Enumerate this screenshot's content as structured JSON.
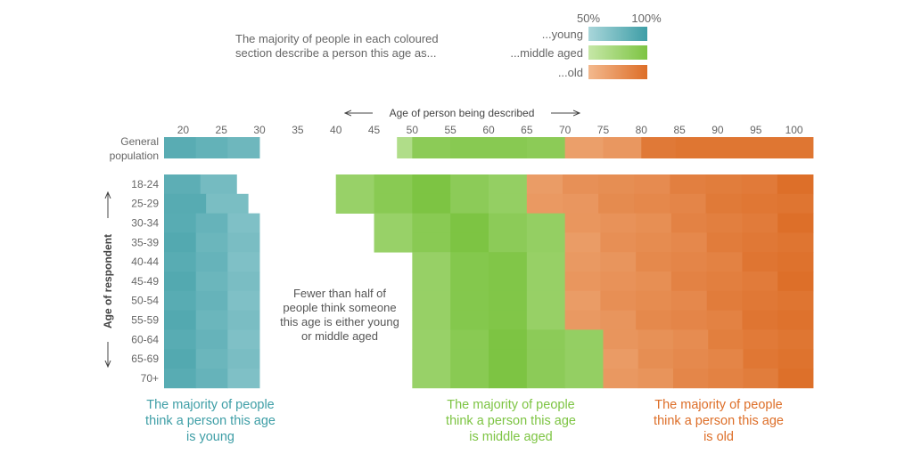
{
  "legend": {
    "title_line1": "The majority of people in each coloured",
    "title_line2": "section describe a person this age as...",
    "scale_low": "50%",
    "scale_high": "100%",
    "items": [
      {
        "key": "young",
        "label": "...young"
      },
      {
        "key": "middle",
        "label": "...middle aged"
      },
      {
        "key": "old",
        "label": "...old"
      }
    ]
  },
  "colors": {
    "young": [
      "#a9d6da",
      "#3e9ea6"
    ],
    "middle": [
      "#c6e7a7",
      "#7dc443"
    ],
    "old": [
      "#f3b98e",
      "#dd6e28"
    ]
  },
  "chart_data": {
    "type": "heatmap",
    "xlabel": "Age of person being described",
    "ylabel": "Age of respondent",
    "x_ticks": [
      20,
      25,
      30,
      35,
      40,
      45,
      50,
      55,
      60,
      65,
      70,
      75,
      80,
      85,
      90,
      95,
      100
    ],
    "xlim": [
      17.5,
      102.5
    ],
    "general_label_line1": "General",
    "general_label_line2": "population",
    "rows": [
      "18-24",
      "25-29",
      "30-34",
      "35-39",
      "40-44",
      "45-49",
      "50-54",
      "55-59",
      "60-64",
      "65-69",
      "70+"
    ],
    "general": [
      {
        "from": 17.5,
        "to": 30,
        "cat": "young",
        "shade": [
          0.75,
          0.65,
          0.55,
          0.45
        ]
      },
      {
        "from": 48,
        "to": 50,
        "cat": "middle",
        "shade": [
          0.3
        ]
      },
      {
        "from": 50,
        "to": 70,
        "cat": "middle",
        "shade": [
          0.8,
          0.85,
          0.85,
          0.8
        ]
      },
      {
        "from": 70,
        "to": 80,
        "cat": "old",
        "shade": [
          0.35,
          0.45
        ]
      },
      {
        "from": 80,
        "to": 102.5,
        "cat": "old",
        "shade": [
          0.85,
          0.9,
          0.9,
          0.9,
          0.9
        ]
      }
    ],
    "segments": [
      [
        {
          "from": 17.5,
          "to": 27,
          "cat": "young"
        },
        {
          "from": 40,
          "to": 65,
          "cat": "middle"
        },
        {
          "from": 65,
          "to": 102.5,
          "cat": "old"
        }
      ],
      [
        {
          "from": 17.5,
          "to": 28.5,
          "cat": "young"
        },
        {
          "from": 40,
          "to": 65,
          "cat": "middle"
        },
        {
          "from": 65,
          "to": 102.5,
          "cat": "old"
        }
      ],
      [
        {
          "from": 17.5,
          "to": 30,
          "cat": "young"
        },
        {
          "from": 45,
          "to": 70,
          "cat": "middle"
        },
        {
          "from": 70,
          "to": 102.5,
          "cat": "old"
        }
      ],
      [
        {
          "from": 17.5,
          "to": 30,
          "cat": "young"
        },
        {
          "from": 45,
          "to": 70,
          "cat": "middle"
        },
        {
          "from": 70,
          "to": 102.5,
          "cat": "old"
        }
      ],
      [
        {
          "from": 17.5,
          "to": 30,
          "cat": "young"
        },
        {
          "from": 50,
          "to": 70,
          "cat": "middle"
        },
        {
          "from": 70,
          "to": 102.5,
          "cat": "old"
        }
      ],
      [
        {
          "from": 17.5,
          "to": 30,
          "cat": "young"
        },
        {
          "from": 50,
          "to": 70,
          "cat": "middle"
        },
        {
          "from": 70,
          "to": 102.5,
          "cat": "old"
        }
      ],
      [
        {
          "from": 17.5,
          "to": 30,
          "cat": "young"
        },
        {
          "from": 50,
          "to": 70,
          "cat": "middle"
        },
        {
          "from": 70,
          "to": 102.5,
          "cat": "old"
        }
      ],
      [
        {
          "from": 17.5,
          "to": 30,
          "cat": "young"
        },
        {
          "from": 50,
          "to": 70,
          "cat": "middle"
        },
        {
          "from": 70,
          "to": 102.5,
          "cat": "old"
        }
      ],
      [
        {
          "from": 17.5,
          "to": 30,
          "cat": "young"
        },
        {
          "from": 50,
          "to": 75,
          "cat": "middle"
        },
        {
          "from": 75,
          "to": 102.5,
          "cat": "old"
        }
      ],
      [
        {
          "from": 17.5,
          "to": 30,
          "cat": "young"
        },
        {
          "from": 50,
          "to": 75,
          "cat": "middle"
        },
        {
          "from": 75,
          "to": 102.5,
          "cat": "old"
        }
      ],
      [
        {
          "from": 17.5,
          "to": 30,
          "cat": "young"
        },
        {
          "from": 50,
          "to": 75,
          "cat": "middle"
        },
        {
          "from": 75,
          "to": 102.5,
          "cat": "old"
        }
      ]
    ],
    "note_lines": [
      "Fewer than half of",
      "people think someone",
      "this age is either young",
      "or middle aged"
    ],
    "captions": [
      {
        "cat": "young",
        "lines": [
          "The majority of people",
          "think a person this age",
          "is young"
        ]
      },
      {
        "cat": "middle",
        "lines": [
          "The majority of people",
          "think a person this age",
          "is middle aged"
        ]
      },
      {
        "cat": "old",
        "lines": [
          "The majority of people",
          "think a person this age",
          "is old"
        ]
      }
    ]
  }
}
